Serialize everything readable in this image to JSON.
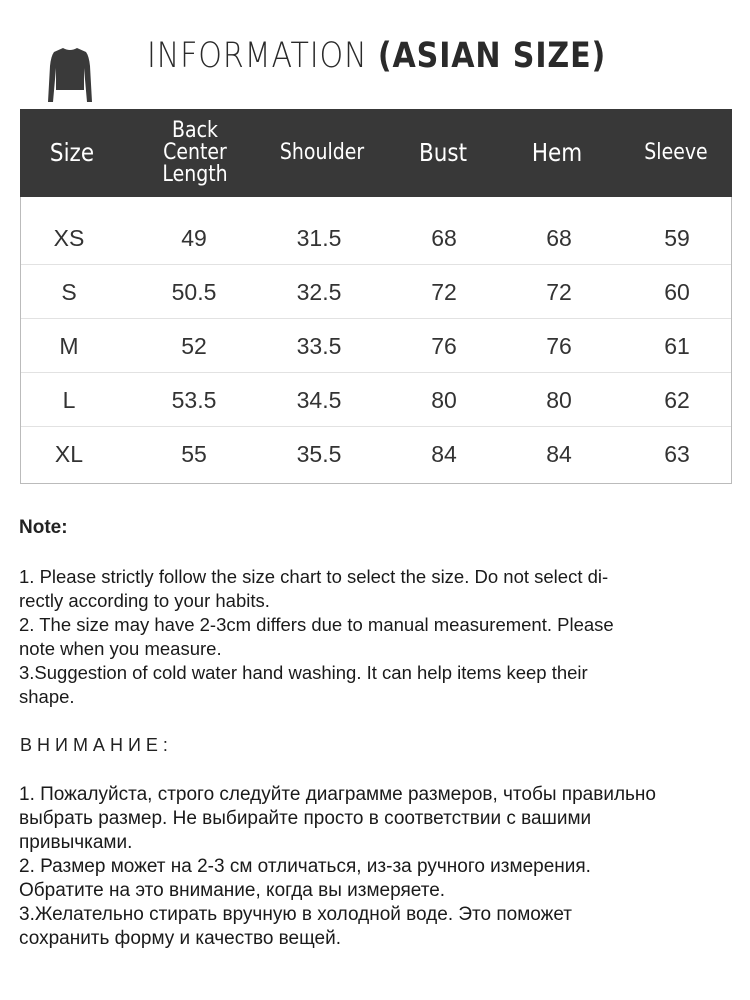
{
  "header": {
    "title_light": "INFORMATION ",
    "title_bold": "(ASIAN SIZE)",
    "garment_icon": "long-sleeve-top-icon"
  },
  "table": {
    "columns": [
      "Size",
      "Back Center Length",
      "Shoulder",
      "Bust",
      "Hem",
      "Sleeve"
    ],
    "column_lines": {
      "back_center_1": "Back Center",
      "back_center_2": "Length"
    },
    "header_color": "#383838",
    "rows": [
      [
        "XS",
        "49",
        "31.5",
        "68",
        "68",
        "59"
      ],
      [
        "S",
        "50.5",
        "32.5",
        "72",
        "72",
        "60"
      ],
      [
        "M",
        "52",
        "33.5",
        "76",
        "76",
        "61"
      ],
      [
        "L",
        "53.5",
        "34.5",
        "80",
        "80",
        "62"
      ],
      [
        "XL",
        "55",
        "35.5",
        "84",
        "84",
        "63"
      ]
    ]
  },
  "note": {
    "heading": "Note:",
    "lines": [
      "1. Please strictly follow the size chart  to select the size. Do not select di-",
      "rectly according to your habits.",
      "2. The size may have 2-3cm differs due to manual measurement. Please",
      "note when you measure.",
      "3.Suggestion of cold water hand washing. It can help items keep their",
      "shape."
    ]
  },
  "note_ru": {
    "heading": "ВНИМАНИЕ:",
    "lines": [
      "1. Пожалуйста, строго следуйте диаграмме размеров, чтобы правильно",
      "выбрать размер. Не выбирайте просто в соответствии с вашими",
      "привычками.",
      "2. Размер может на 2-3 см отличаться, из-за ручного измерения.",
      "Обратите на это внимание, когда вы измеряете.",
      "3.Желательно стирать вручную в холодной воде. Это поможет",
      "сохранить форму и качество вещей."
    ]
  }
}
